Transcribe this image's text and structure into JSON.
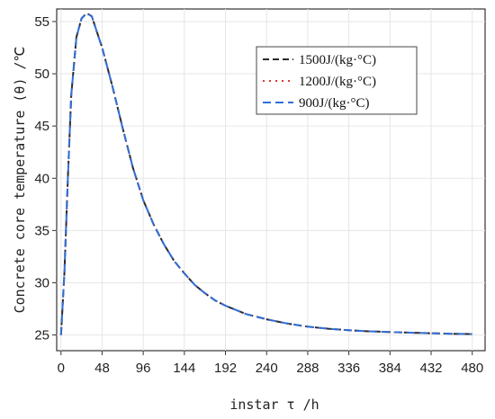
{
  "chart_data": {
    "type": "line",
    "xlabel": "instar τ /h",
    "ylabel": "Concrete core temperature (θ) /℃",
    "xlim": [
      -5,
      495
    ],
    "ylim": [
      23.5,
      56.2
    ],
    "x_ticks": [
      0,
      48,
      96,
      144,
      192,
      240,
      288,
      336,
      384,
      432,
      480
    ],
    "y_ticks": [
      25,
      30,
      35,
      40,
      45,
      50,
      55
    ],
    "grid": true,
    "legend_position": "top-right",
    "x": [
      0,
      4,
      8,
      12,
      18,
      24,
      30,
      36,
      42,
      48,
      60,
      72,
      84,
      96,
      108,
      120,
      132,
      144,
      156,
      168,
      180,
      192,
      216,
      240,
      264,
      288,
      312,
      336,
      360,
      384,
      408,
      432,
      456,
      480
    ],
    "series": [
      {
        "name": "1500J/(kg·°C)",
        "color": "#2b2b2b",
        "dash": "7,4",
        "values": [
          25.0,
          31.0,
          40.0,
          48.0,
          53.5,
          55.3,
          55.8,
          55.5,
          54.0,
          52.5,
          48.8,
          44.8,
          41.0,
          37.9,
          35.6,
          33.7,
          32.1,
          30.9,
          29.8,
          29.0,
          28.3,
          27.8,
          27.0,
          26.5,
          26.1,
          25.8,
          25.6,
          25.45,
          25.35,
          25.28,
          25.22,
          25.17,
          25.12,
          25.08
        ]
      },
      {
        "name": "1200J/(kg·°C)",
        "color": "#e23a2a",
        "dash": "2,5",
        "values": [
          25.0,
          31.0,
          40.0,
          48.0,
          53.5,
          55.3,
          55.8,
          55.5,
          54.0,
          52.5,
          48.8,
          44.8,
          41.0,
          37.9,
          35.6,
          33.7,
          32.1,
          30.9,
          29.8,
          29.0,
          28.3,
          27.8,
          27.0,
          26.5,
          26.1,
          25.8,
          25.6,
          25.45,
          25.35,
          25.28,
          25.22,
          25.17,
          25.12,
          25.08
        ]
      },
      {
        "name": "900J/(kg·°C)",
        "color": "#2f6fd6",
        "dash": "9,5",
        "values": [
          25.0,
          31.0,
          40.0,
          48.0,
          53.5,
          55.3,
          55.8,
          55.5,
          54.0,
          52.5,
          48.8,
          44.8,
          41.0,
          37.9,
          35.6,
          33.7,
          32.1,
          30.9,
          29.8,
          29.0,
          28.3,
          27.8,
          27.0,
          26.5,
          26.1,
          25.8,
          25.6,
          25.45,
          25.35,
          25.28,
          25.22,
          25.17,
          25.12,
          25.08
        ]
      }
    ]
  }
}
